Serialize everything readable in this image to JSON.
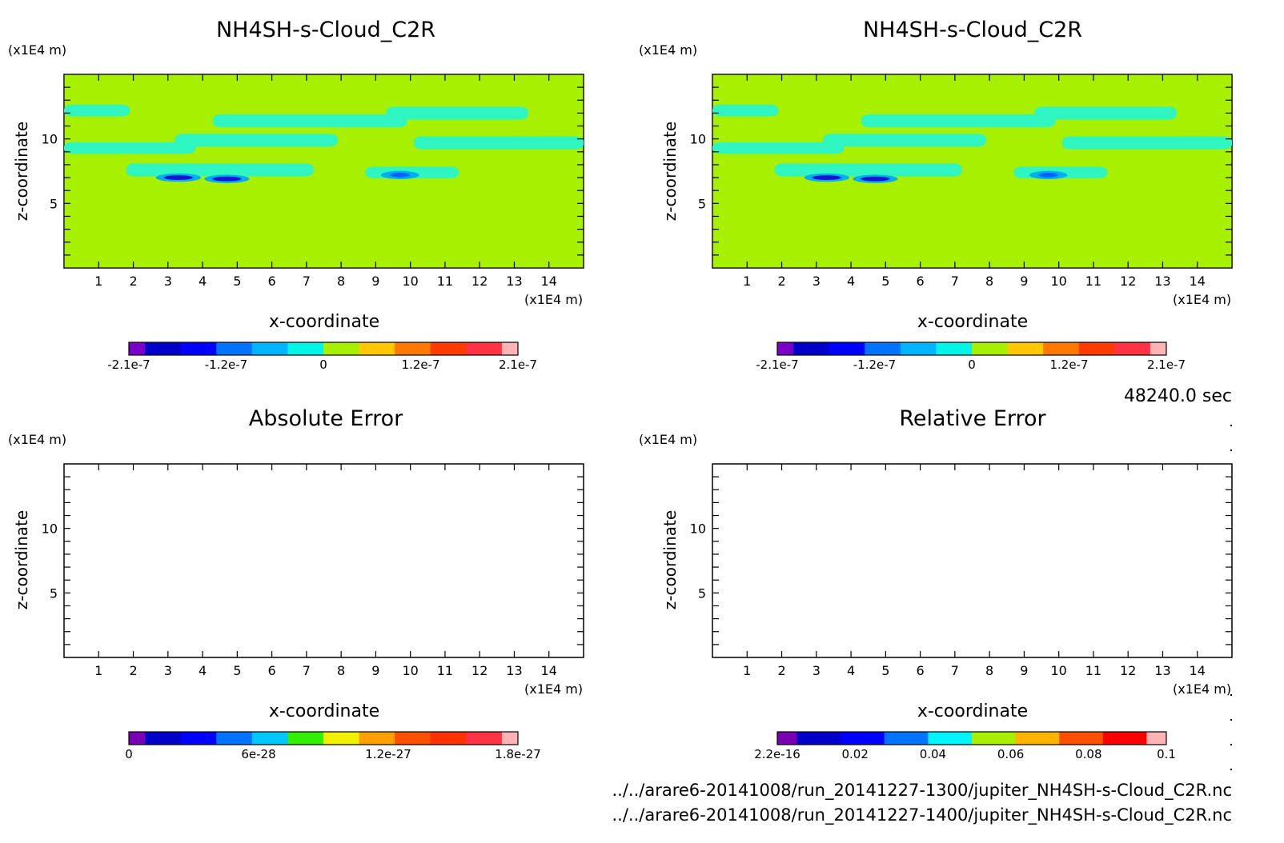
{
  "time_label": "48240.0 sec",
  "files": [
    "../../arare6-20141008/run_20141227-1300/jupiter_NH4SH-s-Cloud_C2R.nc",
    "../../arare6-20141008/run_20141227-1400/jupiter_NH4SH-s-Cloud_C2R.nc"
  ],
  "colors": {
    "background_field": "#a6f000",
    "cloud_field": "#2ff5c0",
    "cloud_edge_blue": "#00aff0",
    "min_core": "#1414d2",
    "axis": "#000000"
  },
  "chart_data": [
    {
      "type": "heatmap",
      "title": "NH4SH-s-Cloud_C2R",
      "xlabel": "x-coordinate",
      "ylabel": "z-coordinate",
      "x_unit": "(x1E4 m)",
      "y_unit": "(x1E4 m)",
      "xlim": [
        0,
        15
      ],
      "ylim": [
        0,
        15
      ],
      "x_ticks": [
        "1",
        "2",
        "3",
        "4",
        "5",
        "6",
        "7",
        "8",
        "9",
        "10",
        "11",
        "12",
        "13",
        "14"
      ],
      "y_ticks": [
        "5",
        "10"
      ],
      "colorbar": {
        "tick_labels": [
          "-2.1e-7",
          "-1.2e-7",
          "0",
          "1.2e-7",
          "2.1e-7"
        ],
        "colors": [
          "#7a00c8",
          "#0000c8",
          "#0000ff",
          "#0073ff",
          "#00b4ff",
          "#00f5e6",
          "#a6f000",
          "#ffc800",
          "#ff7800",
          "#ff3c00",
          "#ff3246",
          "#ffb4b4"
        ]
      },
      "cloud_bands": [
        {
          "x0": 0.0,
          "x1": 1.9,
          "z": 12.2
        },
        {
          "x0": 4.3,
          "x1": 9.9,
          "z": 11.4
        },
        {
          "x0": 9.3,
          "x1": 13.4,
          "z": 12.0
        },
        {
          "x0": 0.0,
          "x1": 3.8,
          "z": 9.3
        },
        {
          "x0": 3.2,
          "x1": 7.9,
          "z": 9.9
        },
        {
          "x0": 10.1,
          "x1": 15.0,
          "z": 9.7
        },
        {
          "x0": 1.8,
          "x1": 7.2,
          "z": 7.6
        },
        {
          "x0": 8.7,
          "x1": 11.4,
          "z": 7.4
        }
      ],
      "minima": [
        {
          "x": 3.3,
          "z": 7.0,
          "value": -2.1e-07
        },
        {
          "x": 4.7,
          "z": 6.9,
          "value": -2.1e-07
        },
        {
          "x": 9.7,
          "z": 7.2,
          "value": -1.2e-07
        }
      ]
    },
    {
      "type": "heatmap",
      "title": "NH4SH-s-Cloud_C2R",
      "xlabel": "x-coordinate",
      "ylabel": "z-coordinate",
      "x_unit": "(x1E4 m)",
      "y_unit": "(x1E4 m)",
      "xlim": [
        0,
        15
      ],
      "ylim": [
        0,
        15
      ],
      "x_ticks": [
        "1",
        "2",
        "3",
        "4",
        "5",
        "6",
        "7",
        "8",
        "9",
        "10",
        "11",
        "12",
        "13",
        "14"
      ],
      "y_ticks": [
        "5",
        "10"
      ],
      "colorbar": {
        "tick_labels": [
          "-2.1e-7",
          "-1.2e-7",
          "0",
          "1.2e-7",
          "2.1e-7"
        ],
        "colors": [
          "#7a00c8",
          "#0000c8",
          "#0000ff",
          "#0073ff",
          "#00b4ff",
          "#00f5e6",
          "#a6f000",
          "#ffc800",
          "#ff7800",
          "#ff3c00",
          "#ff3246",
          "#ffb4b4"
        ]
      },
      "cloud_bands": "same as first panel",
      "minima": "same as first panel"
    },
    {
      "type": "heatmap",
      "title": "Absolute Error",
      "xlabel": "x-coordinate",
      "ylabel": "z-coordinate",
      "x_unit": "(x1E4 m)",
      "y_unit": "(x1E4 m)",
      "xlim": [
        0,
        15
      ],
      "ylim": [
        0,
        15
      ],
      "x_ticks": [
        "1",
        "2",
        "3",
        "4",
        "5",
        "6",
        "7",
        "8",
        "9",
        "10",
        "11",
        "12",
        "13",
        "14"
      ],
      "y_ticks": [
        "5",
        "10"
      ],
      "field": "empty",
      "colorbar": {
        "tick_labels": [
          "0",
          "6e-28",
          "1.2e-27",
          "1.8e-27"
        ],
        "colors": [
          "#7a00b4",
          "#0000c8",
          "#0000ff",
          "#0073ff",
          "#00c8ff",
          "#32f000",
          "#f0f000",
          "#ffa000",
          "#ff5000",
          "#ff3200",
          "#ff3246",
          "#ffb4b4"
        ]
      }
    },
    {
      "type": "heatmap",
      "title": "Relative Error",
      "xlabel": "x-coordinate",
      "ylabel": "z-coordinate",
      "x_unit": "(x1E4 m)",
      "y_unit": "(x1E4 m)",
      "xlim": [
        0,
        15
      ],
      "ylim": [
        0,
        15
      ],
      "x_ticks": [
        "1",
        "2",
        "3",
        "4",
        "5",
        "6",
        "7",
        "8",
        "9",
        "10",
        "11",
        "12",
        "13",
        "14"
      ],
      "y_ticks": [
        "5",
        "10"
      ],
      "field": "empty",
      "colorbar": {
        "tick_labels": [
          "2.2e-16",
          "0.02",
          "0.04",
          "0.06",
          "0.08",
          "0.1"
        ],
        "colors": [
          "#7a00b4",
          "#0000c8",
          "#0000ff",
          "#0073ff",
          "#00f5ff",
          "#a6f000",
          "#ffb400",
          "#ff5000",
          "#ff0000",
          "#ffb4b4"
        ]
      }
    }
  ]
}
